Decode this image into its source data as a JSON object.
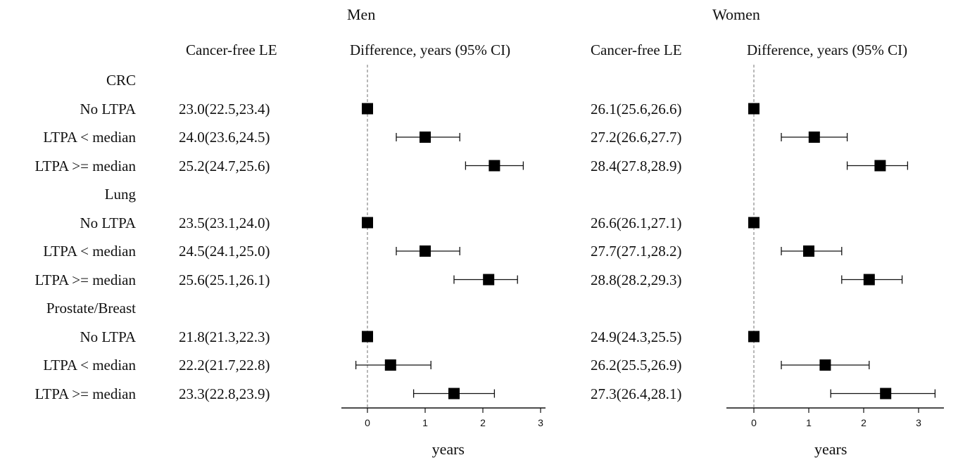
{
  "chart_data": [
    {
      "type": "forest",
      "panel": "Men",
      "column_headers": {
        "estimate": "Cancer-free LE",
        "difference": "Difference, years (95% CI)"
      },
      "xlabel": "years",
      "xlim": [
        -0.45,
        3.2
      ],
      "xticks": [
        0,
        1,
        2,
        3
      ],
      "reference_line_x": 0,
      "groups": [
        {
          "name": "CRC",
          "rows": [
            {
              "label": "No LTPA",
              "le": "23.0(22.5,23.4)",
              "diff": 0.0,
              "lo": null,
              "hi": null
            },
            {
              "label": "LTPA < median",
              "le": "24.0(23.6,24.5)",
              "diff": 1.0,
              "lo": 0.5,
              "hi": 1.6
            },
            {
              "label": "LTPA >= median",
              "le": "25.2(24.7,25.6)",
              "diff": 2.2,
              "lo": 1.7,
              "hi": 2.7
            }
          ]
        },
        {
          "name": "Lung",
          "rows": [
            {
              "label": "No LTPA",
              "le": "23.5(23.1,24.0)",
              "diff": 0.0,
              "lo": null,
              "hi": null
            },
            {
              "label": "LTPA < median",
              "le": "24.5(24.1,25.0)",
              "diff": 1.0,
              "lo": 0.5,
              "hi": 1.6
            },
            {
              "label": "LTPA >= median",
              "le": "25.6(25.1,26.1)",
              "diff": 2.1,
              "lo": 1.5,
              "hi": 2.6
            }
          ]
        },
        {
          "name": "Prostate/Breast",
          "rows": [
            {
              "label": "No LTPA",
              "le": "21.8(21.3,22.3)",
              "diff": 0.0,
              "lo": null,
              "hi": null
            },
            {
              "label": "LTPA < median",
              "le": "22.2(21.7,22.8)",
              "diff": 0.4,
              "lo": -0.2,
              "hi": 1.1
            },
            {
              "label": "LTPA >= median",
              "le": "23.3(22.8,23.9)",
              "diff": 1.5,
              "lo": 0.8,
              "hi": 2.2
            }
          ]
        }
      ]
    },
    {
      "type": "forest",
      "panel": "Women",
      "column_headers": {
        "estimate": "Cancer-free LE",
        "difference": "Difference, years (95% CI)"
      },
      "xlabel": "years",
      "xlim": [
        -0.45,
        3.4
      ],
      "xticks": [
        0,
        1,
        2,
        3
      ],
      "reference_line_x": 0,
      "groups": [
        {
          "name": "CRC",
          "rows": [
            {
              "label": "No LTPA",
              "le": "26.1(25.6,26.6)",
              "diff": 0.0,
              "lo": null,
              "hi": null
            },
            {
              "label": "LTPA < median",
              "le": "27.2(26.6,27.7)",
              "diff": 1.1,
              "lo": 0.5,
              "hi": 1.7
            },
            {
              "label": "LTPA >= median",
              "le": "28.4(27.8,28.9)",
              "diff": 2.3,
              "lo": 1.7,
              "hi": 2.8
            }
          ]
        },
        {
          "name": "Lung",
          "rows": [
            {
              "label": "No LTPA",
              "le": "26.6(26.1,27.1)",
              "diff": 0.0,
              "lo": null,
              "hi": null
            },
            {
              "label": "LTPA < median",
              "le": "27.7(27.1,28.2)",
              "diff": 1.0,
              "lo": 0.5,
              "hi": 1.6
            },
            {
              "label": "LTPA >= median",
              "le": "28.8(28.2,29.3)",
              "diff": 2.1,
              "lo": 1.6,
              "hi": 2.7
            }
          ]
        },
        {
          "name": "Prostate/Breast",
          "rows": [
            {
              "label": "No LTPA",
              "le": "24.9(24.3,25.5)",
              "diff": 0.0,
              "lo": null,
              "hi": null
            },
            {
              "label": "LTPA < median",
              "le": "26.2(25.5,26.9)",
              "diff": 1.3,
              "lo": 0.5,
              "hi": 2.1
            },
            {
              "label": "LTPA >= median",
              "le": "27.3(26.4,28.1)",
              "diff": 2.4,
              "lo": 1.4,
              "hi": 3.3
            }
          ]
        }
      ]
    }
  ]
}
